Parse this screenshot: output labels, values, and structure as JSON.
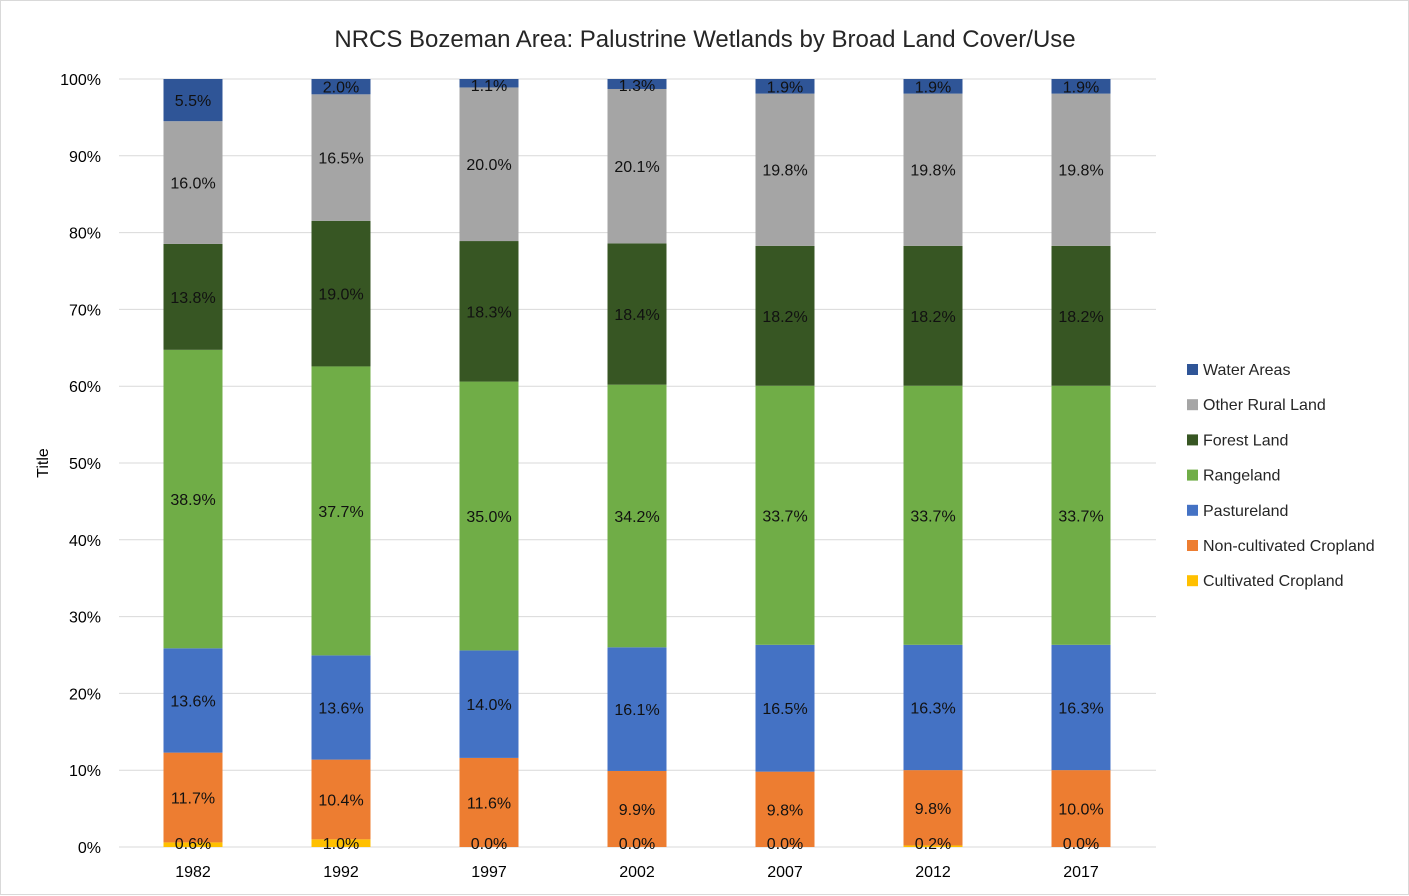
{
  "chart_data": {
    "type": "bar",
    "stacked": true,
    "title": "NRCS Bozeman Area: Palustrine Wetlands by Broad Land Cover/Use",
    "xlabel": "",
    "ylabel": "Title",
    "ylim": [
      0,
      100
    ],
    "y_ticks": [
      "0%",
      "10%",
      "20%",
      "30%",
      "40%",
      "50%",
      "60%",
      "70%",
      "80%",
      "90%",
      "100%"
    ],
    "grid": true,
    "legend_position": "right",
    "categories": [
      "1982",
      "1992",
      "1997",
      "2002",
      "2007",
      "2012",
      "2017"
    ],
    "series": [
      {
        "name": "Cultivated Cropland",
        "color": "#FFC000",
        "values": [
          0.6,
          1.0,
          0.0,
          0.0,
          0.0,
          0.2,
          0.0
        ],
        "labels": [
          "0.6%",
          "1.0%",
          "0.0%",
          "0.0%",
          "0.0%",
          "0.2%",
          "0.0%"
        ]
      },
      {
        "name": "Non-cultivated Cropland",
        "color": "#ED7D31",
        "values": [
          11.7,
          10.4,
          11.6,
          9.9,
          9.8,
          9.8,
          10.0
        ],
        "labels": [
          "11.7%",
          "10.4%",
          "11.6%",
          "9.9%",
          "9.8%",
          "9.8%",
          "10.0%"
        ]
      },
      {
        "name": "Pastureland",
        "color": "#4472C4",
        "values": [
          13.6,
          13.6,
          14.0,
          16.1,
          16.5,
          16.3,
          16.3
        ],
        "labels": [
          "13.6%",
          "13.6%",
          "14.0%",
          "16.1%",
          "16.5%",
          "16.3%",
          "16.3%"
        ]
      },
      {
        "name": "Rangeland",
        "color": "#70AD47",
        "values": [
          38.9,
          37.7,
          35.0,
          34.2,
          33.7,
          33.7,
          33.7
        ],
        "labels": [
          "38.9%",
          "37.7%",
          "35.0%",
          "34.2%",
          "33.7%",
          "33.7%",
          "33.7%"
        ]
      },
      {
        "name": "Forest Land",
        "color": "#375623",
        "values": [
          13.8,
          19.0,
          18.3,
          18.4,
          18.2,
          18.2,
          18.2
        ],
        "labels": [
          "13.8%",
          "19.0%",
          "18.3%",
          "18.4%",
          "18.2%",
          "18.2%",
          "18.2%"
        ]
      },
      {
        "name": "Other Rural Land",
        "color": "#A5A5A5",
        "values": [
          16.0,
          16.5,
          20.0,
          20.1,
          19.8,
          19.8,
          19.8
        ],
        "labels": [
          "16.0%",
          "16.5%",
          "20.0%",
          "20.1%",
          "19.8%",
          "19.8%",
          "19.8%"
        ]
      },
      {
        "name": "Water Areas",
        "color": "#2F5597",
        "values": [
          5.5,
          2.0,
          1.1,
          1.3,
          1.9,
          1.9,
          1.9
        ],
        "labels": [
          "5.5%",
          "2.0%",
          "1.1%",
          "1.3%",
          "1.9%",
          "1.9%",
          "1.9%"
        ]
      }
    ]
  }
}
